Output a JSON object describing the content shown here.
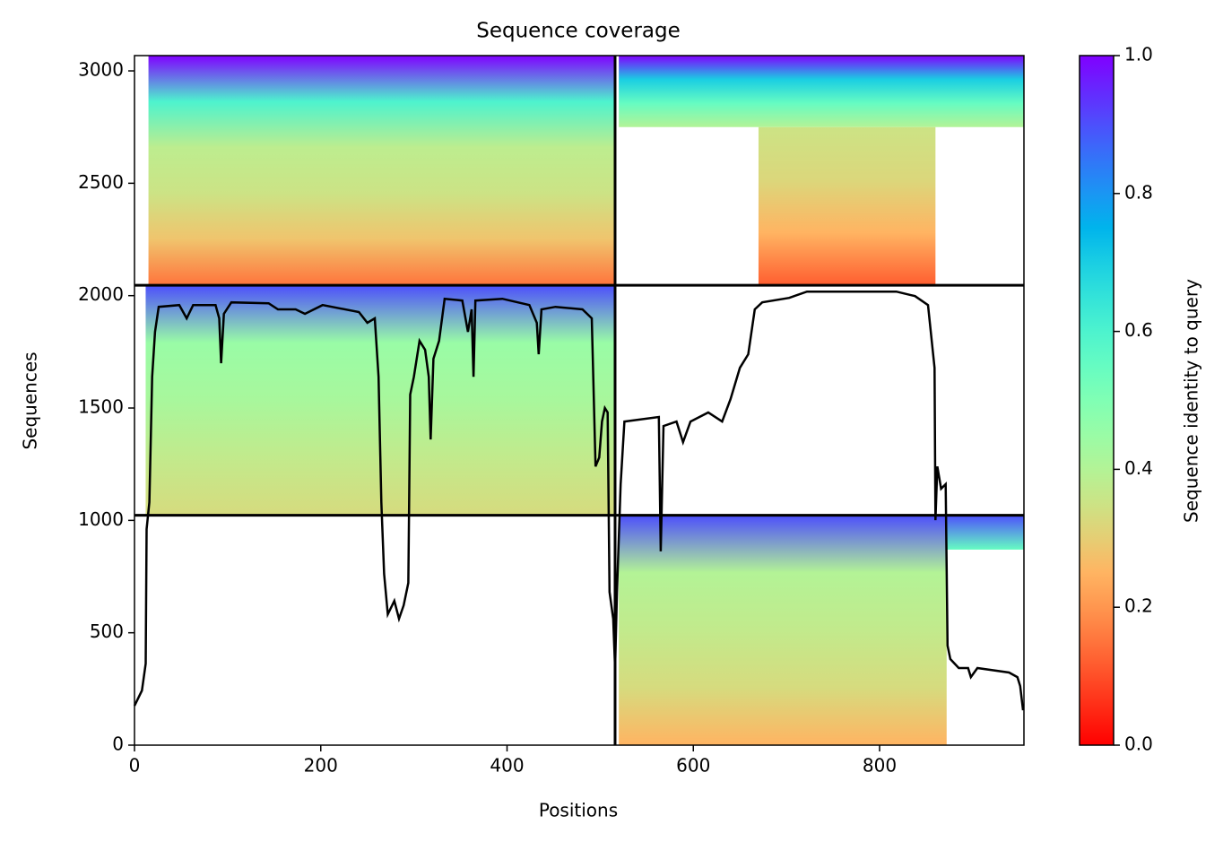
{
  "chart_data": {
    "type": "coverage",
    "title": "Sequence coverage",
    "xlabel": "Positions",
    "ylabel": "Sequences",
    "colorbar_label": "Sequence identity to query",
    "xlim": [
      0,
      955
    ],
    "xticks": [
      0,
      200,
      400,
      600,
      800
    ],
    "ylim": [
      0,
      3068
    ],
    "yticks": [
      0,
      500,
      1000,
      1500,
      2000,
      2500,
      3000
    ],
    "clim": [
      0,
      1
    ],
    "cticks": [
      {
        "value": 0,
        "label": "0.0"
      },
      {
        "value": 0.2,
        "label": "0.2"
      },
      {
        "value": 0.4,
        "label": "0.4"
      },
      {
        "value": 0.6,
        "label": "0.6"
      },
      {
        "value": 0.8,
        "label": "0.8"
      },
      {
        "value": 1,
        "label": "1.0"
      }
    ],
    "colormap": "rainbow_r",
    "regions": [
      {
        "x": [
          15,
          516
        ],
        "y": [
          2046,
          3068
        ],
        "identity": [
          0.15,
          0.28,
          0.35,
          0.38,
          0.6,
          1.0
        ]
      },
      {
        "x": [
          670,
          860
        ],
        "y": [
          2046,
          2750
        ],
        "identity": [
          0.12,
          0.25,
          0.32,
          0.35
        ]
      },
      {
        "x": [
          520,
          955
        ],
        "y": [
          2750,
          3068
        ],
        "identity": [
          0.4,
          0.55,
          0.7,
          1.0
        ]
      },
      {
        "x": [
          12,
          516
        ],
        "y": [
          1023,
          2046
        ],
        "identity": [
          0.33,
          0.37,
          0.42,
          0.45,
          0.9
        ]
      },
      {
        "x": [
          520,
          872
        ],
        "y": [
          0,
          1023
        ],
        "identity": [
          0.25,
          0.33,
          0.37,
          0.4,
          0.9
        ]
      },
      {
        "x": [
          872,
          955
        ],
        "y": [
          870,
          1023
        ],
        "identity": [
          0.55,
          0.9
        ]
      }
    ],
    "boundaries": {
      "x": [
        516
      ],
      "y": [
        1023,
        2046
      ]
    },
    "line": {
      "color": "#000000",
      "x": [
        0,
        8,
        12,
        13,
        16,
        19,
        22,
        26,
        48,
        56,
        63,
        87,
        91,
        93,
        96,
        104,
        144,
        154,
        173,
        183,
        202,
        241,
        250,
        258,
        262,
        265,
        268,
        272,
        279,
        284,
        289,
        294,
        296,
        300,
        306,
        312,
        316,
        318,
        321,
        327,
        333,
        352,
        358,
        362,
        364,
        366,
        395,
        424,
        432,
        434,
        437,
        452,
        481,
        491,
        495,
        499,
        502,
        505,
        508,
        510,
        514,
        516,
        518,
        522,
        526,
        563,
        565,
        568,
        582,
        589,
        597,
        616,
        631,
        640,
        650,
        659,
        666,
        674,
        703,
        722,
        770,
        818,
        838,
        852,
        857,
        859,
        860,
        862,
        866,
        871,
        873,
        876,
        885,
        895,
        898,
        905,
        939,
        948,
        951,
        954
      ],
      "y": [
        175,
        243,
        363,
        961,
        1081,
        1639,
        1839,
        1950,
        1958,
        1899,
        1958,
        1958,
        1899,
        1699,
        1919,
        1970,
        1966,
        1939,
        1939,
        1919,
        1958,
        1927,
        1879,
        1899,
        1639,
        1081,
        762,
        582,
        642,
        562,
        622,
        722,
        1560,
        1639,
        1799,
        1759,
        1639,
        1360,
        1719,
        1799,
        1986,
        1978,
        1839,
        1939,
        1639,
        1978,
        1986,
        1958,
        1879,
        1739,
        1939,
        1950,
        1939,
        1899,
        1240,
        1280,
        1440,
        1500,
        1480,
        682,
        562,
        343,
        682,
        1161,
        1440,
        1460,
        862,
        1420,
        1440,
        1348,
        1440,
        1480,
        1440,
        1540,
        1679,
        1739,
        1939,
        1970,
        1990,
        2018,
        2018,
        2018,
        1998,
        1958,
        1759,
        1679,
        1001,
        1240,
        1141,
        1161,
        443,
        383,
        343,
        343,
        303,
        343,
        323,
        303,
        263,
        155
      ]
    }
  }
}
